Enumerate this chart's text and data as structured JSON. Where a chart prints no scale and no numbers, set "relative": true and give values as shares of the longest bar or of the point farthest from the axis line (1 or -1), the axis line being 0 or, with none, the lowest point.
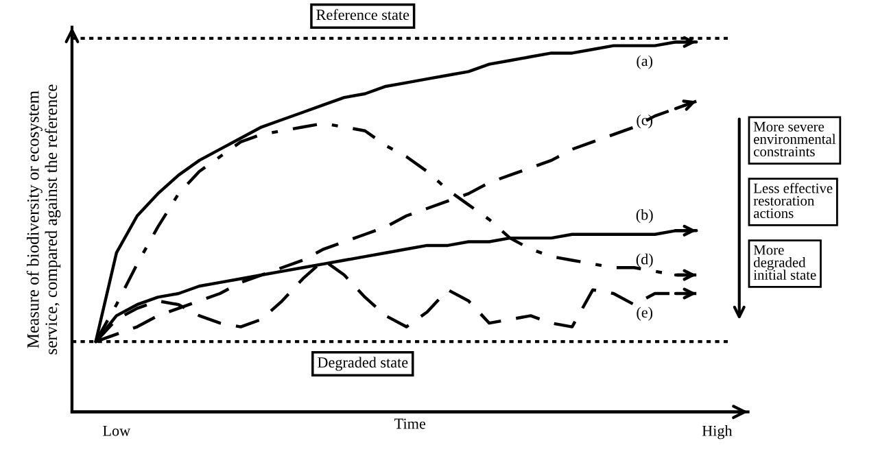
{
  "chart_data": {
    "type": "line",
    "relative": true,
    "xlabel": "Time",
    "ylabel": "Measure of biodiversity or ecosystem\nservice, compared against the reference",
    "categories": [
      null,
      "Low",
      null,
      null,
      null,
      null,
      null,
      null,
      null,
      null,
      null,
      null,
      null,
      null,
      null,
      null,
      null,
      null,
      null,
      null,
      null,
      null,
      null,
      null,
      null,
      null,
      null,
      null,
      null,
      null,
      "High"
    ],
    "grid": false,
    "series": [
      {
        "name": "(a)",
        "color": "#000000",
        "line_style": "solid",
        "values": [
          0.19,
          0.43,
          0.53,
          0.59,
          0.64,
          0.68,
          0.71,
          0.74,
          0.77,
          0.79,
          0.81,
          0.83,
          0.85,
          0.86,
          0.88,
          0.89,
          0.9,
          0.91,
          0.92,
          0.94,
          0.95,
          0.96,
          0.97,
          0.97,
          0.98,
          0.99,
          0.99,
          0.99,
          1.0,
          1.0,
          null
        ]
      },
      {
        "name": "(b)",
        "color": "#000000",
        "line_style": "solid",
        "values": [
          0.19,
          0.26,
          0.29,
          0.31,
          0.32,
          0.34,
          0.35,
          0.36,
          0.37,
          0.38,
          0.39,
          0.4,
          0.41,
          0.42,
          0.43,
          0.44,
          0.45,
          0.45,
          0.46,
          0.46,
          0.47,
          0.47,
          0.47,
          0.48,
          0.48,
          0.48,
          0.48,
          0.48,
          0.49,
          0.49,
          null
        ]
      },
      {
        "name": "(c)",
        "color": "#000000",
        "line_style": "dashed",
        "values": [
          0.19,
          0.21,
          0.23,
          0.26,
          0.28,
          0.3,
          0.32,
          0.35,
          0.37,
          0.39,
          0.41,
          0.44,
          0.46,
          0.48,
          0.5,
          0.53,
          0.55,
          0.57,
          0.59,
          0.62,
          0.64,
          0.66,
          0.68,
          0.71,
          0.73,
          0.75,
          0.77,
          0.8,
          0.82,
          0.84,
          null
        ]
      },
      {
        "name": "(d)",
        "color": "#000000",
        "line_style": "dashdot",
        "values": [
          0.19,
          0.29,
          0.4,
          0.5,
          0.59,
          0.65,
          0.69,
          0.73,
          0.75,
          0.76,
          0.77,
          0.78,
          0.77,
          0.76,
          0.72,
          0.69,
          0.65,
          0.6,
          0.56,
          0.52,
          0.47,
          0.44,
          0.42,
          0.41,
          0.4,
          0.39,
          0.39,
          0.38,
          0.37,
          0.37,
          null
        ]
      },
      {
        "name": "(e)",
        "color": "#000000",
        "line_style": "dashed",
        "values": [
          0.19,
          0.25,
          0.28,
          0.3,
          0.29,
          0.26,
          0.24,
          0.23,
          0.25,
          0.3,
          0.36,
          0.41,
          0.37,
          0.31,
          0.26,
          0.23,
          0.27,
          0.33,
          0.3,
          0.24,
          0.25,
          0.26,
          0.24,
          0.23,
          0.33,
          0.32,
          0.29,
          0.32,
          0.32,
          0.32,
          null
        ]
      }
    ],
    "annotations": [
      "More severe\nenvironmental\nconstraints",
      "Less effective\nrestoration\nactions",
      "More\ndegraded\ninitial state"
    ],
    "ref_lines": [
      {
        "axis": "y",
        "value": 1.01,
        "label": "Reference state",
        "color": "#000000",
        "line_style": "dotted"
      },
      {
        "axis": "y",
        "value": 0.19,
        "label": "Degraded state",
        "color": "#000000",
        "line_style": "dotted"
      }
    ]
  }
}
